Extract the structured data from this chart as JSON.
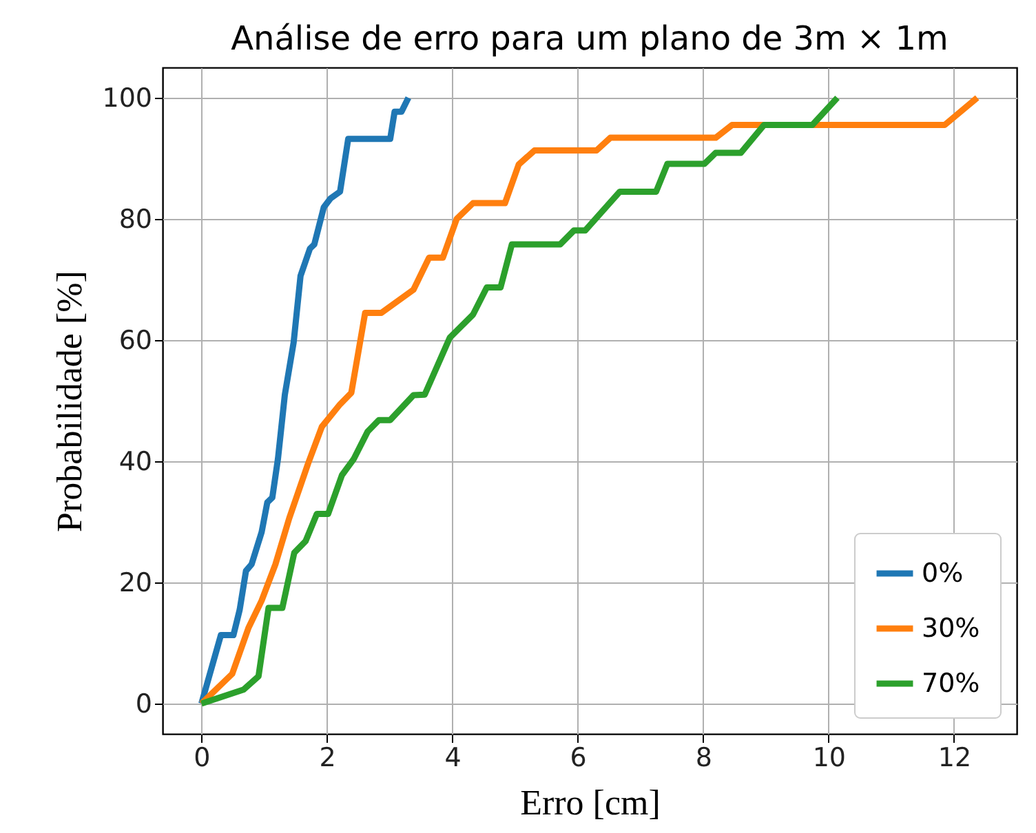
{
  "chart_data": {
    "type": "line",
    "title": "Análise de erro para um plano de 3m × 1m",
    "xlabel": "Erro [cm]",
    "ylabel": "Probabilidade [%]",
    "xlim": [
      -0.62,
      13.0
    ],
    "ylim": [
      -5,
      105
    ],
    "xticks": [
      0,
      2,
      4,
      6,
      8,
      10,
      12
    ],
    "yticks": [
      0,
      20,
      40,
      60,
      80,
      100
    ],
    "grid": true,
    "legend": "bottom right",
    "marker": "none",
    "line_style": "solid",
    "series": [
      {
        "name": "0%",
        "color": "#1f77b4",
        "x": [
          0,
          0.31,
          0.51,
          0.61,
          0.71,
          0.8,
          0.96,
          1.05,
          1.13,
          1.22,
          1.33,
          1.47,
          1.58,
          1.73,
          1.8,
          1.95,
          2.06,
          2.21,
          2.34,
          3.01,
          3.08,
          3.19,
          3.3
        ],
        "values": [
          0,
          11.3,
          11.3,
          15.5,
          21.9,
          23,
          28.3,
          33.2,
          34,
          40.4,
          51,
          59.6,
          70.6,
          75.1,
          75.8,
          81.9,
          83.4,
          84.5,
          93.2,
          93.2,
          97.7,
          97.7,
          100
        ]
      },
      {
        "name": "30%",
        "color": "#ff7f0e",
        "x": [
          0,
          0.49,
          0.75,
          0.96,
          1.18,
          1.4,
          1.7,
          1.92,
          2.21,
          2.39,
          2.61,
          2.87,
          3.38,
          3.63,
          3.85,
          4.07,
          4.33,
          4.84,
          5.06,
          5.31,
          6.3,
          6.52,
          8.2,
          8.46,
          11.85,
          12.37
        ],
        "values": [
          0,
          4.9,
          12.5,
          17,
          23,
          30.6,
          39.6,
          45.7,
          49.4,
          51.3,
          64.5,
          64.5,
          68.3,
          73.6,
          73.6,
          80,
          82.6,
          82.6,
          89,
          91.3,
          91.3,
          93.4,
          93.4,
          95.5,
          95.5,
          100
        ]
      },
      {
        "name": "70%",
        "color": "#2ca02c",
        "x": [
          0,
          0.67,
          0.91,
          1.07,
          1.29,
          1.48,
          1.66,
          1.84,
          2.02,
          2.24,
          2.43,
          2.65,
          2.83,
          3.01,
          3.38,
          3.56,
          3.96,
          4.33,
          4.55,
          4.77,
          4.95,
          5.72,
          5.94,
          6.12,
          6.67,
          7.25,
          7.43,
          8.02,
          8.2,
          8.6,
          8.97,
          9.74,
          10.14
        ],
        "values": [
          0,
          2.3,
          4.5,
          15.8,
          15.8,
          24.9,
          26.8,
          31.3,
          31.3,
          37.7,
          40.4,
          44.9,
          46.8,
          46.8,
          50.9,
          51,
          60.4,
          64.2,
          68.7,
          68.7,
          75.8,
          75.8,
          78.1,
          78.1,
          84.5,
          84.5,
          89.1,
          89.1,
          90.9,
          90.9,
          95.5,
          95.5,
          100
        ]
      }
    ]
  }
}
